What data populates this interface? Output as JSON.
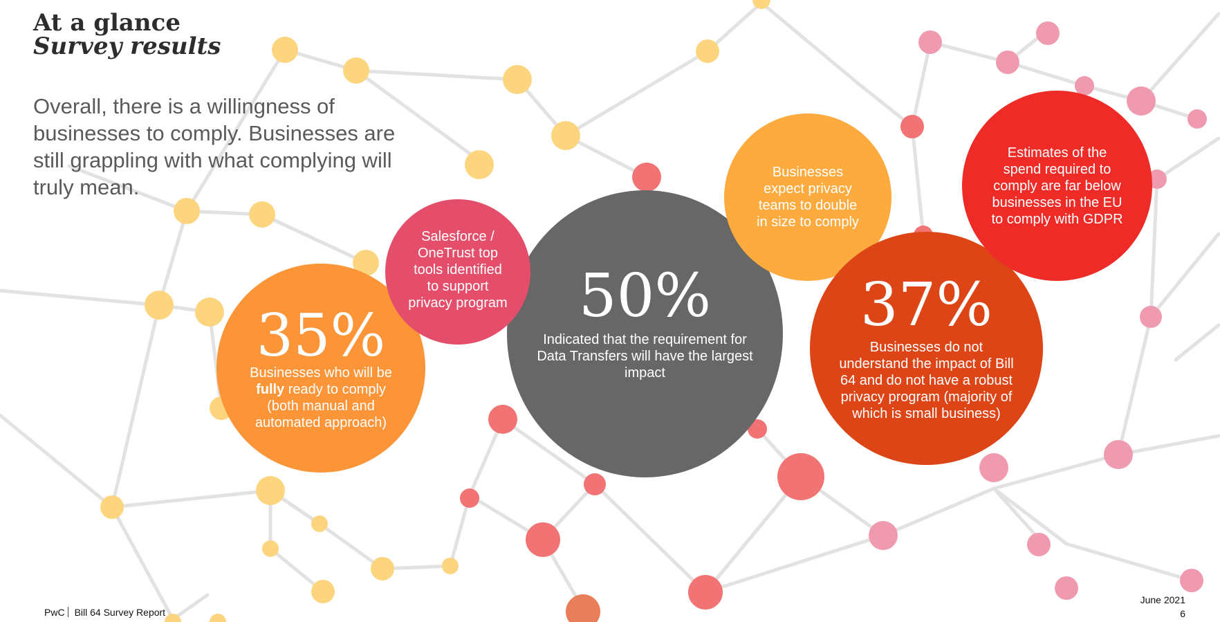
{
  "title_line1": "At a glance",
  "title_line2": "Survey results",
  "intro": "Overall, there is a willingness of businesses to comply. Businesses are still grappling with what complying will truly mean.",
  "bubbles": {
    "b35": {
      "big": "35%",
      "text_before": "Businesses who will be ",
      "text_bold": "fully",
      "text_after": " ready to comply (both manual and automated approach)",
      "color": "#fc9438"
    },
    "salesforce": {
      "text": "Salesforce / OneTrust top tools identified to support privacy program",
      "color": "#e44e6a"
    },
    "b50": {
      "big": "50%",
      "text": "Indicated that the requirement for Data Transfers will have the largest impact",
      "color": "#676767"
    },
    "double": {
      "text": "Businesses expect privacy teams to double in size to comply",
      "color": "#fdab3e"
    },
    "b37": {
      "big": "37%",
      "text": "Businesses do not understand the impact of Bill 64 and do not have a robust privacy program (majority of which is small business)",
      "color": "#dd4516"
    },
    "estimates": {
      "text": "Estimates of the spend required to comply are far below businesses in the EU to comply with GDPR",
      "color": "#ef2b27"
    }
  },
  "footer": {
    "brand": "PwC",
    "report": "Bill 64 Survey Report",
    "date": "June 2021",
    "page": "6"
  }
}
